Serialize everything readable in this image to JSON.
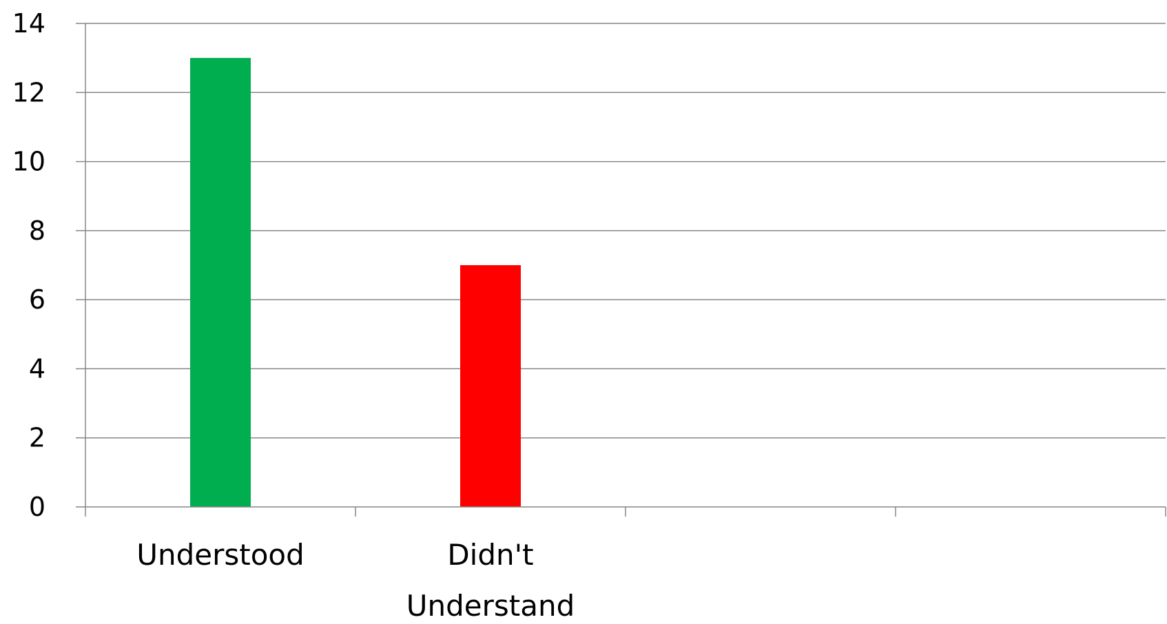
{
  "chart_data": {
    "type": "bar",
    "categories": [
      "Understood",
      "Didn't\nUnderstand",
      "",
      ""
    ],
    "values": [
      13,
      7,
      null,
      null
    ],
    "bar_colors": [
      "#00ae4f",
      "#ff0000"
    ],
    "title": "",
    "xlabel": "",
    "ylabel": "",
    "ylim": [
      0,
      14
    ],
    "yticks": [
      0,
      2,
      4,
      6,
      8,
      10,
      12,
      14
    ],
    "grid": true,
    "legend": "none",
    "colors": {
      "gridline": "#868686",
      "axis": "#868686"
    }
  }
}
